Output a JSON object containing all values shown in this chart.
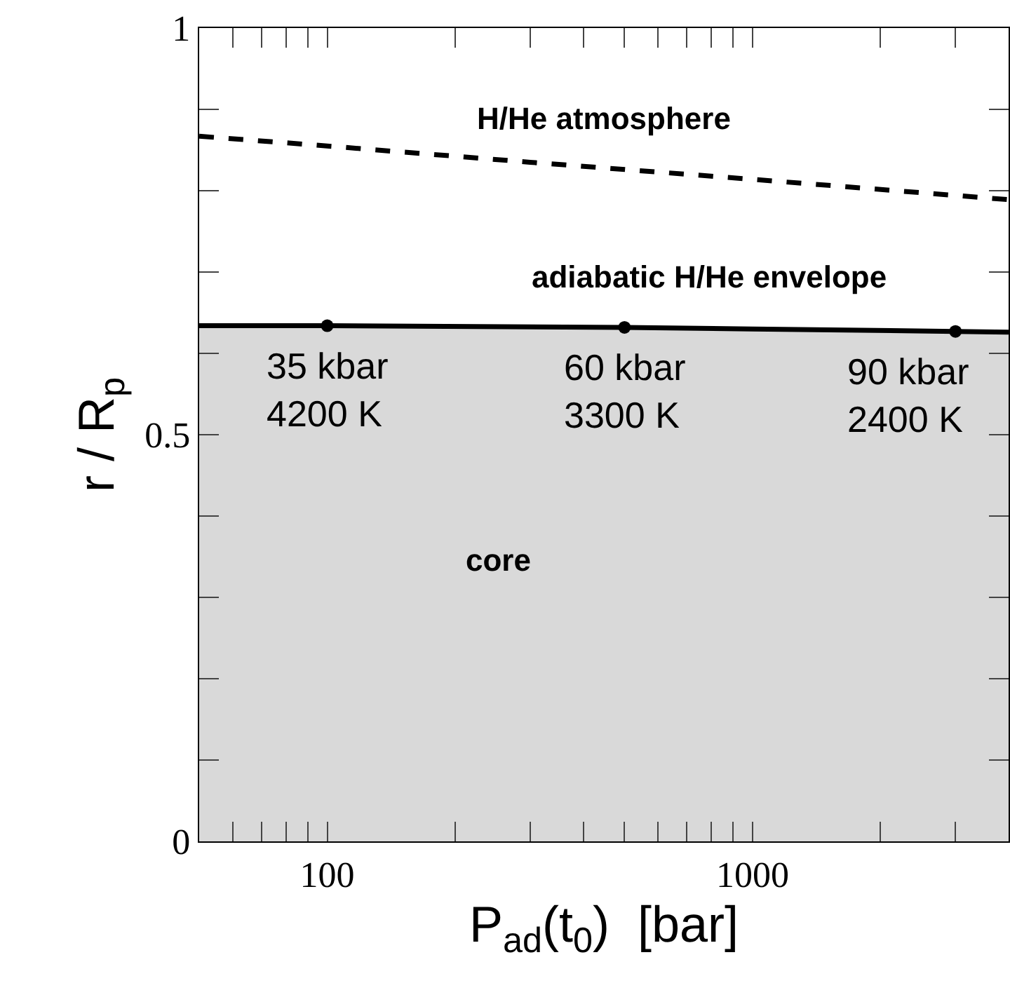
{
  "chart_data": {
    "type": "line",
    "xlabel": "P$_{ad}$(t$_{0}$)  [bar]",
    "ylabel": "r / R$_{p}$",
    "log": "x",
    "xlim": [
      50,
      4000
    ],
    "ylim": [
      0,
      1
    ],
    "xticks": [
      {
        "value": 60,
        "label": null
      },
      {
        "value": 70,
        "label": null
      },
      {
        "value": 80,
        "label": null
      },
      {
        "value": 90,
        "label": null
      },
      100,
      {
        "value": 200,
        "label": null
      },
      {
        "value": 300,
        "label": null
      },
      {
        "value": 400,
        "label": null
      },
      {
        "value": 500,
        "label": null
      },
      {
        "value": 600,
        "label": null
      },
      {
        "value": 700,
        "label": null
      },
      {
        "value": 800,
        "label": null
      },
      {
        "value": 900,
        "label": null
      },
      1000,
      {
        "value": 2000,
        "label": null
      },
      {
        "value": 3000,
        "label": null
      }
    ],
    "yticks": [
      0,
      {
        "value": 0.1,
        "label": null
      },
      {
        "value": 0.2,
        "label": null
      },
      {
        "value": 0.3,
        "label": null
      },
      {
        "value": 0.4,
        "label": null
      },
      0.5,
      {
        "value": 0.6,
        "label": null
      },
      {
        "value": 0.7,
        "label": null
      },
      {
        "value": 0.8,
        "label": null
      },
      {
        "value": 0.9,
        "label": null
      },
      1
    ],
    "grid": false,
    "series": [
      {
        "type": "area",
        "color": "#d9d9d9",
        "x": [
          50,
          100,
          500,
          1000,
          3000,
          4000
        ],
        "values": [
          0.634,
          0.634,
          0.632,
          0.63,
          0.627,
          0.626
        ]
      },
      {
        "type": "scatter",
        "color": "#000000",
        "marker": "circle",
        "x": [
          100,
          500,
          3000
        ],
        "values": [
          0.634,
          0.632,
          0.627
        ]
      },
      {
        "color": "#000000",
        "line_style": "dashed",
        "x": [
          50,
          100,
          300,
          1000,
          4000
        ],
        "values": [
          0.867,
          0.855,
          0.835,
          0.814,
          0.789
        ]
      }
    ],
    "annotations": [
      "H/He atmosphere",
      "adiabatic H/He envelope",
      "core",
      {
        "text": "35 kbar\n4200 K",
        "x": 100,
        "y": 0.634
      },
      {
        "text": "60 kbar\n3300 K",
        "x": 500,
        "y": 0.632
      },
      {
        "text": "90 kbar\n2400 K",
        "x": 3000,
        "y": 0.627
      }
    ]
  }
}
